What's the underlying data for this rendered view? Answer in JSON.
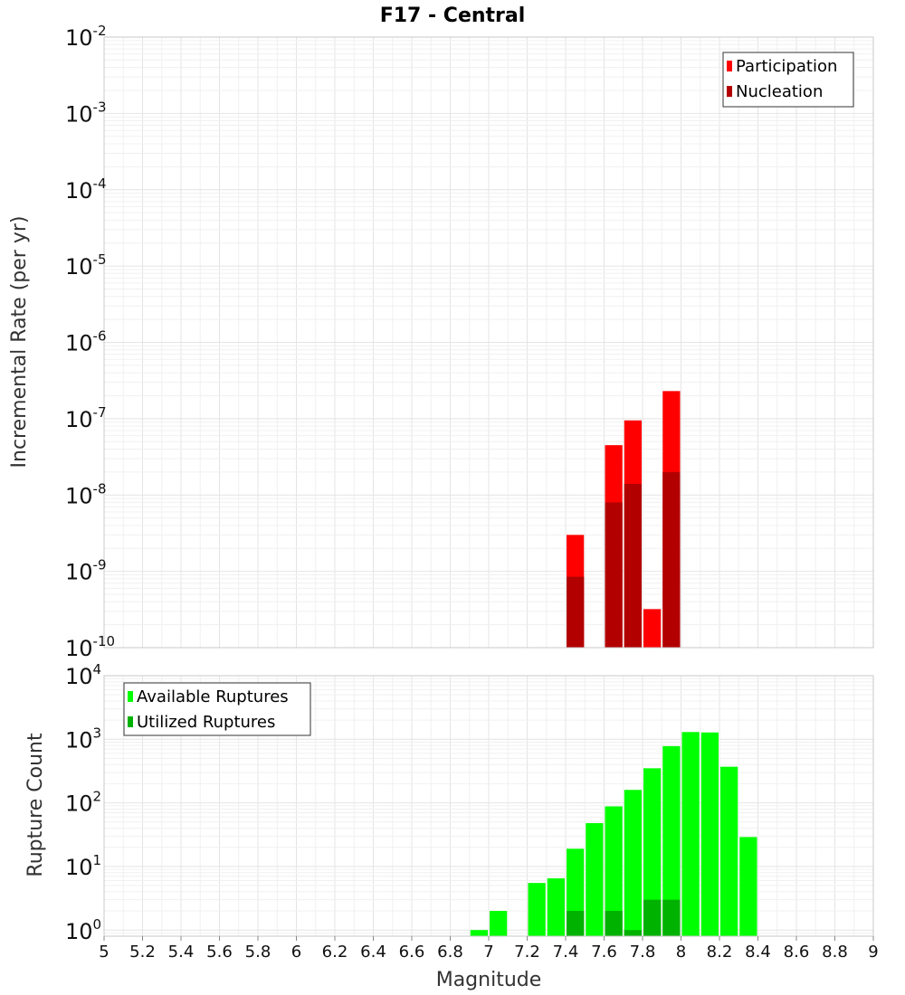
{
  "chart_data": {
    "title": "F17 - Central",
    "xlabel": "Magnitude",
    "xlim": [
      5,
      9
    ],
    "xticks": [
      "5",
      "5.2",
      "5.4",
      "5.6",
      "5.8",
      "6",
      "6.2",
      "6.4",
      "6.6",
      "6.8",
      "7",
      "7.2",
      "7.4",
      "7.6",
      "7.8",
      "8",
      "8.2",
      "8.4",
      "8.6",
      "8.8",
      "9"
    ],
    "panels": [
      {
        "id": "rate",
        "type": "bar",
        "yscale": "log",
        "ylabel": "Incremental Rate (per yr)",
        "ylim": [
          1e-10,
          0.01
        ],
        "yticks": [
          {
            "base": "10",
            "exp": "-2"
          },
          {
            "base": "10",
            "exp": "-3"
          },
          {
            "base": "10",
            "exp": "-4"
          },
          {
            "base": "10",
            "exp": "-5"
          },
          {
            "base": "10",
            "exp": "-6"
          },
          {
            "base": "10",
            "exp": "-7"
          },
          {
            "base": "10",
            "exp": "-8"
          },
          {
            "base": "10",
            "exp": "-9"
          },
          {
            "base": "10",
            "exp": "-10"
          }
        ],
        "legend_position": "top-right",
        "series": [
          {
            "name": "Participation",
            "color": "#ff0000",
            "points": [
              {
                "x": 7.45,
                "y": 3e-09
              },
              {
                "x": 7.65,
                "y": 4.5e-08
              },
              {
                "x": 7.75,
                "y": 9.5e-08
              },
              {
                "x": 7.85,
                "y": 3.2e-10
              },
              {
                "x": 7.95,
                "y": 2.3e-07
              }
            ]
          },
          {
            "name": "Nucleation",
            "color": "#b20000",
            "points": [
              {
                "x": 7.45,
                "y": 8.5e-10
              },
              {
                "x": 7.65,
                "y": 8e-09
              },
              {
                "x": 7.75,
                "y": 1.4e-08
              },
              {
                "x": 7.95,
                "y": 2e-08
              }
            ]
          }
        ]
      },
      {
        "id": "count",
        "type": "bar",
        "yscale": "log",
        "ylabel": "Rupture Count",
        "ylim": [
          0.8,
          10000
        ],
        "yticks": [
          {
            "value": 10000,
            "base": "10",
            "exp": "4"
          },
          {
            "value": 1000,
            "base": "10",
            "exp": "3"
          },
          {
            "value": 100,
            "base": "10",
            "exp": "2"
          },
          {
            "value": 10,
            "base": "10",
            "exp": "1"
          },
          {
            "value": 1,
            "base": "10",
            "exp": "0"
          }
        ],
        "legend_position": "top-left",
        "series": [
          {
            "name": "Available Ruptures",
            "color": "#00ff00",
            "points": [
              {
                "x": 6.95,
                "y": 1
              },
              {
                "x": 7.05,
                "y": 2
              },
              {
                "x": 7.25,
                "y": 5.5
              },
              {
                "x": 7.35,
                "y": 6.5
              },
              {
                "x": 7.45,
                "y": 19
              },
              {
                "x": 7.55,
                "y": 48
              },
              {
                "x": 7.65,
                "y": 88
              },
              {
                "x": 7.75,
                "y": 160
              },
              {
                "x": 7.85,
                "y": 350
              },
              {
                "x": 7.95,
                "y": 780
              },
              {
                "x": 8.05,
                "y": 1300
              },
              {
                "x": 8.15,
                "y": 1280
              },
              {
                "x": 8.25,
                "y": 370
              },
              {
                "x": 8.35,
                "y": 29
              }
            ]
          },
          {
            "name": "Utilized Ruptures",
            "color": "#00b200",
            "points": [
              {
                "x": 7.45,
                "y": 2
              },
              {
                "x": 7.65,
                "y": 2
              },
              {
                "x": 7.75,
                "y": 1
              },
              {
                "x": 7.85,
                "y": 3
              },
              {
                "x": 7.95,
                "y": 3
              }
            ]
          }
        ]
      }
    ]
  }
}
